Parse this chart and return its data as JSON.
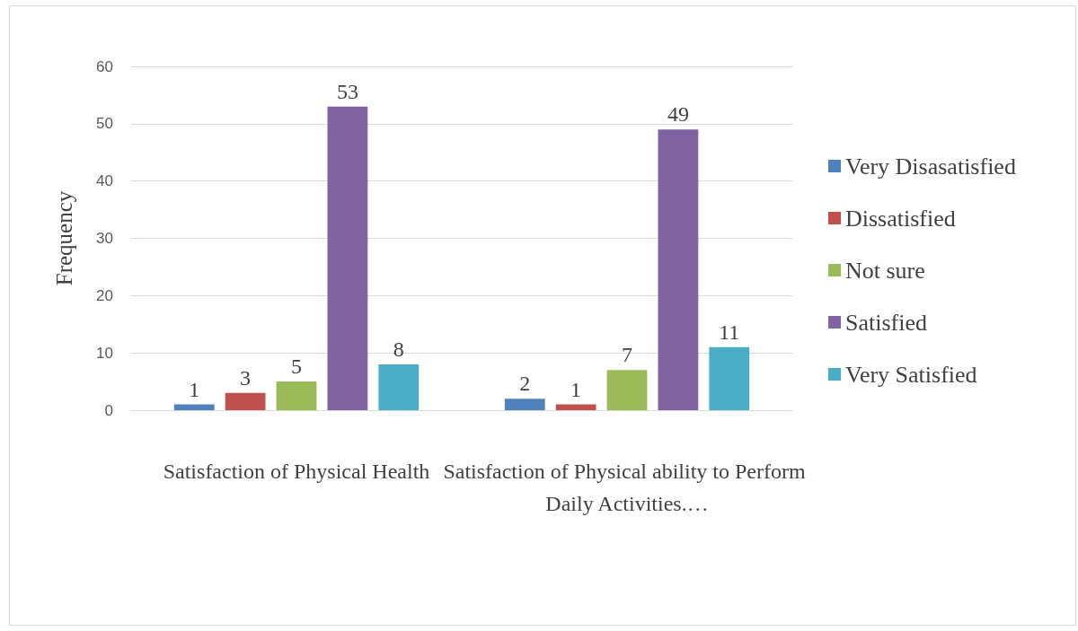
{
  "chart_data": {
    "type": "bar",
    "ylabel": "Frequency",
    "categories": [
      "Satisfaction of Physical Health",
      "Satisfaction of Physical ability to Perform Daily Activities.…"
    ],
    "series": [
      {
        "name": "Very Disasatisfied",
        "color": "#4f81bd",
        "values": [
          1,
          2
        ]
      },
      {
        "name": "Dissatisfied",
        "color": "#c0504d",
        "values": [
          3,
          1
        ]
      },
      {
        "name": "Not sure",
        "color": "#9bbb59",
        "values": [
          5,
          7
        ]
      },
      {
        "name": "Satisfied",
        "color": "#8064a2",
        "values": [
          53,
          49
        ]
      },
      {
        "name": "Very Satisfied",
        "color": "#4bacc6",
        "values": [
          8,
          11
        ]
      }
    ],
    "ylim": [
      0,
      60
    ],
    "yticks": [
      0,
      10,
      20,
      30,
      40,
      50,
      60
    ],
    "grid": "y",
    "legend": "right",
    "data_labels": true
  }
}
